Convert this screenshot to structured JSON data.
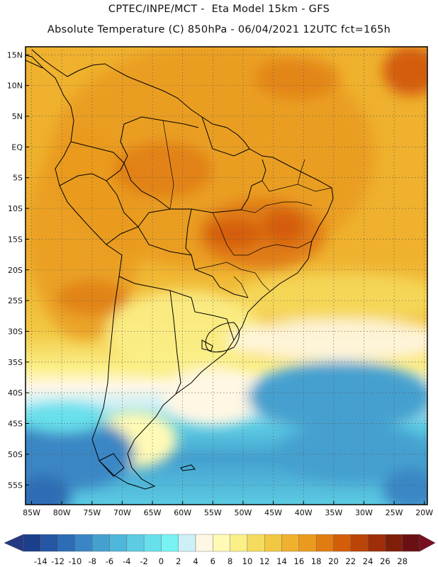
{
  "title_line1": "CPTEC/INPE/MCT -  Eta Model 15km - GFS",
  "title_line2": "Absolute Temperature (C) 850hPa - 06/04/2021 12UTC fct=165h",
  "lat_labels": [
    "15N",
    "10N",
    "5N",
    "EQ",
    "5S",
    "10S",
    "15S",
    "20S",
    "25S",
    "30S",
    "35S",
    "40S",
    "45S",
    "50S",
    "55S"
  ],
  "lat_values": [
    15,
    10,
    5,
    0,
    -5,
    -10,
    -15,
    -20,
    -25,
    -30,
    -35,
    -40,
    -45,
    -50,
    -55
  ],
  "lon_labels": [
    "85W",
    "80W",
    "75W",
    "70W",
    "65W",
    "60W",
    "55W",
    "50W",
    "45W",
    "40W",
    "35W",
    "30W",
    "25W",
    "20W"
  ],
  "lon_values": [
    -85,
    -80,
    -75,
    -70,
    -65,
    -60,
    -55,
    -50,
    -45,
    -40,
    -35,
    -30,
    -25,
    -20
  ],
  "colorbar": {
    "labels": [
      "-14",
      "-12",
      "-10",
      "-8",
      "-6",
      "-4",
      "-2",
      "0",
      "2",
      "4",
      "6",
      "8",
      "10",
      "12",
      "14",
      "16",
      "18",
      "20",
      "22",
      "24",
      "26",
      "28"
    ],
    "colors": [
      "#1c3f8c",
      "#2456a4",
      "#2d6db5",
      "#3a86c4",
      "#44a0cf",
      "#4fb7d9",
      "#5ccbe3",
      "#68e0ec",
      "#78f2f2",
      "#cdeff6",
      "#fff7e4",
      "#fffab5",
      "#fbef88",
      "#f6dc5e",
      "#f2c843",
      "#efb12e",
      "#ea9b1f",
      "#e07c12",
      "#d45d0a",
      "#bb4408",
      "#9e2e08",
      "#7f1e09",
      "#6b1012"
    ],
    "low_color": "#253a85",
    "high_color": "#7a0f22"
  },
  "colors": {
    "background": "#ffffff",
    "frame": "#000000",
    "grid": "#555555"
  }
}
